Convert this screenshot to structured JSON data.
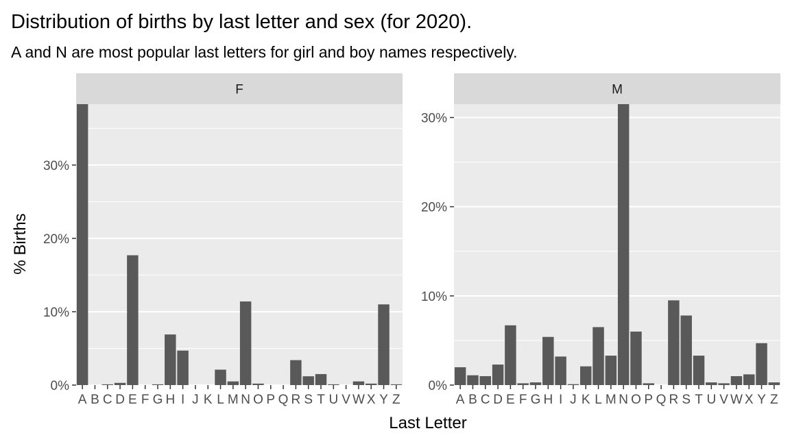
{
  "chart_data": {
    "type": "bar",
    "title": "Distribution of births by last letter and sex (for 2020).",
    "subtitle": "A and N are most popular last letters for girl and boy names respectively.",
    "xlabel": "Last Letter",
    "ylabel": "% Births",
    "categories": [
      "A",
      "B",
      "C",
      "D",
      "E",
      "F",
      "G",
      "H",
      "I",
      "J",
      "K",
      "L",
      "M",
      "N",
      "O",
      "P",
      "Q",
      "R",
      "S",
      "T",
      "U",
      "V",
      "W",
      "X",
      "Y",
      "Z"
    ],
    "facet_scales": "free_y",
    "grid": true,
    "bar_color": "#595959",
    "panel_background": "#ebebeb",
    "strip_background": "#d9d9d9",
    "panels": [
      {
        "label": "F",
        "ylim": [
          0,
          38.3
        ],
        "yticks": [
          0,
          10,
          20,
          30
        ],
        "ytick_labels": [
          "0%",
          "10%",
          "20%",
          "30%"
        ],
        "values": [
          38.3,
          0.0,
          0.1,
          0.3,
          17.7,
          0.0,
          0.1,
          6.9,
          4.7,
          0.0,
          0.0,
          2.1,
          0.5,
          11.4,
          0.2,
          0.0,
          0.0,
          3.4,
          1.2,
          1.5,
          0.1,
          0.0,
          0.5,
          0.2,
          11.0,
          0.1
        ]
      },
      {
        "label": "M",
        "ylim": [
          0,
          31.5
        ],
        "yticks": [
          0,
          10,
          20,
          30
        ],
        "ytick_labels": [
          "0%",
          "10%",
          "20%",
          "30%"
        ],
        "values": [
          2.0,
          1.1,
          1.0,
          2.3,
          6.7,
          0.2,
          0.3,
          5.4,
          3.2,
          0.1,
          2.1,
          6.5,
          3.3,
          31.5,
          6.0,
          0.2,
          0.0,
          9.5,
          7.8,
          3.3,
          0.3,
          0.2,
          1.0,
          1.2,
          4.7,
          0.3
        ]
      }
    ]
  }
}
